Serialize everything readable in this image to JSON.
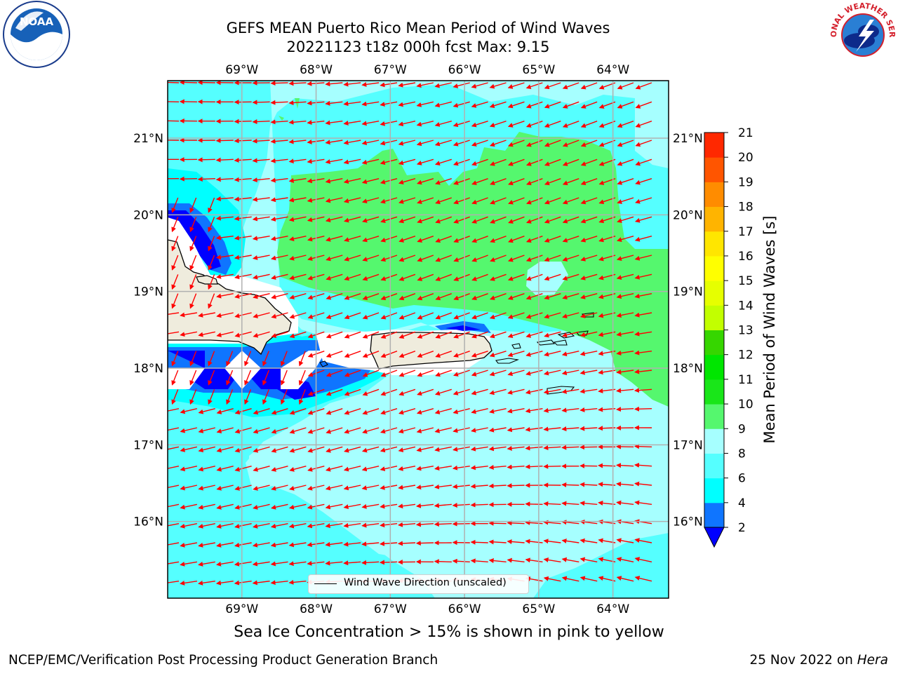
{
  "title": {
    "line1": "GEFS MEAN Puerto Rico Mean Period of Wind Waves",
    "line2": "20221123 t18z 000h fcst   Max: 9.15"
  },
  "logos": {
    "left": {
      "icon": "noaa-logo-icon",
      "text": "NOAA"
    },
    "right": {
      "icon": "nws-logo-icon",
      "text": "NATIONAL WEATHER SERVICE"
    }
  },
  "legend": {
    "label": "Wind Wave Direction (unscaled)"
  },
  "note": "Sea Ice Concentration > 15% is shown in pink to yellow",
  "footer": {
    "left": "NCEP/EMC/Verification Post Processing Product Generation Branch",
    "right_date": "25 Nov 2022 on ",
    "right_host": "Hera"
  },
  "chart_data": {
    "type": "heatmap",
    "title": "GEFS MEAN Puerto Rico Mean Period of Wind Waves",
    "subtitle": "20221123 t18z 000h fcst   Max: 9.15",
    "max_value": 9.15,
    "x_ticks": [
      "69°W",
      "68°W",
      "67°W",
      "66°W",
      "65°W",
      "64°W"
    ],
    "x_tick_values": [
      -69,
      -68,
      -67,
      -66,
      -65,
      -64
    ],
    "y_ticks": [
      "21°N",
      "20°N",
      "19°N",
      "18°N",
      "17°N",
      "16°N"
    ],
    "y_tick_values": [
      21,
      20,
      19,
      18,
      17,
      16
    ],
    "xlim": [
      -70,
      -63.25
    ],
    "ylim": [
      15,
      21.75
    ],
    "grid": true,
    "colorbar": {
      "label": "Mean Period of Wind Waves [s]",
      "levels": [
        2,
        4,
        6,
        8,
        9,
        10,
        11,
        12,
        13,
        14,
        15,
        16,
        17,
        18,
        19,
        20,
        21
      ],
      "tick_labels": [
        "2",
        "4",
        "6",
        "8",
        "9",
        "10",
        "11",
        "12",
        "13",
        "14",
        "15",
        "16",
        "17",
        "18",
        "19",
        "20",
        "21"
      ],
      "colors": [
        "#0f75ff",
        "#00ffff",
        "#55ffff",
        "#a6ffff",
        "#55f76e",
        "#19e619",
        "#00e600",
        "#36d600",
        "#c2ff00",
        "#e6ff00",
        "#ffff00",
        "#ffe600",
        "#ffb400",
        "#ff8c00",
        "#ff5500",
        "#ff2800",
        "#ff0000"
      ],
      "extend": "min",
      "under_color": "#0000ff"
    },
    "vector_field": {
      "name": "Wind Wave Direction (unscaled)",
      "color": "#ff0000",
      "dominant_direction": "toward west / west-southwest"
    },
    "colors": {
      "land": "#efecdd",
      "missing": "#ffffff",
      "grid": "#b0b0b0",
      "arrows": "#ff0000"
    }
  }
}
